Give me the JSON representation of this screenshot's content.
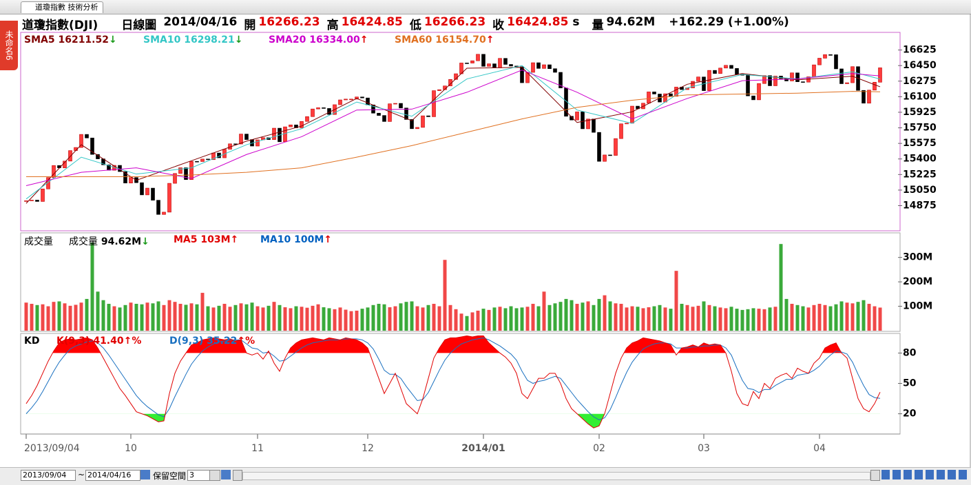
{
  "ui": {
    "tab": "道瓊指數 技術分析",
    "side_tab": "未命名6",
    "bottom": {
      "start": "2013/09/04",
      "sep": "~",
      "end": "2014/04/16",
      "reserve": "保留空間",
      "reserve_value": "3"
    }
  },
  "header": {
    "name": "道瓊指數(DJI)",
    "period": "日線圖",
    "date": "2014/04/16",
    "open_label": "開",
    "open": "16266.23",
    "high_label": "高",
    "high": "16424.85",
    "low_label": "低",
    "low": "16266.23",
    "close_label": "收",
    "close": "16424.85",
    "close_flag": "s",
    "volume_label": "量",
    "volume": "94.62M",
    "change": "+162.29 (+1.00%)"
  },
  "chart_data": [
    {
      "type": "candlestick",
      "up_color": "#ff3c3c",
      "down_color": "#000000",
      "categories": [
        "2013/09/04",
        null,
        null,
        null,
        null,
        null,
        null,
        null,
        null,
        null,
        null,
        null,
        null,
        null,
        null,
        null,
        null,
        null,
        null,
        "10",
        null,
        null,
        null,
        null,
        null,
        null,
        null,
        null,
        null,
        null,
        null,
        null,
        null,
        null,
        null,
        null,
        null,
        null,
        null,
        null,
        null,
        null,
        "11",
        null,
        null,
        null,
        null,
        null,
        null,
        null,
        null,
        null,
        null,
        null,
        null,
        null,
        null,
        null,
        null,
        null,
        null,
        null,
        "12",
        null,
        null,
        null,
        null,
        null,
        null,
        null,
        null,
        null,
        null,
        null,
        null,
        null,
        null,
        null,
        null,
        null,
        null,
        null,
        null,
        "2014/01",
        null,
        null,
        null,
        null,
        null,
        null,
        null,
        null,
        null,
        null,
        null,
        null,
        null,
        null,
        null,
        null,
        null,
        null,
        null,
        null,
        "02",
        null,
        null,
        null,
        null,
        null,
        null,
        null,
        null,
        null,
        null,
        null,
        null,
        null,
        null,
        null,
        null,
        null,
        null,
        "03",
        null,
        null,
        null,
        null,
        null,
        null,
        null,
        null,
        null,
        null,
        null,
        null,
        null,
        null,
        null,
        null,
        null,
        null,
        null,
        null,
        "04",
        null,
        null,
        null,
        null,
        null,
        null,
        null,
        null,
        null,
        null,
        null
      ],
      "values": [
        14930,
        14937,
        14922,
        15063,
        15191,
        15326,
        15300,
        15376,
        15494,
        15529,
        15676,
        15636,
        15451,
        15401,
        15334,
        15273,
        15328,
        15258,
        15129,
        15191,
        15133,
        14996,
        15072,
        14936,
        14776,
        14802,
        15126,
        15237,
        15301,
        15168,
        15373,
        15371,
        15399,
        15392,
        15467,
        15413,
        15509,
        15570,
        15568,
        15680,
        15618,
        15545,
        15615,
        15639,
        15618,
        15746,
        15593,
        15761,
        15783,
        15750,
        15822,
        15876,
        15962,
        15976,
        15968,
        15900,
        16010,
        16064,
        16073,
        16073,
        16097,
        16086,
        16008,
        15915,
        15889,
        15821,
        16020,
        16025,
        15973,
        15844,
        15740,
        15755,
        15885,
        15875,
        16168,
        16179,
        16221,
        16294,
        16358,
        16479,
        16478,
        16504,
        16577,
        16441,
        16470,
        16425,
        16531,
        16463,
        16445,
        16437,
        16257,
        16374,
        16482,
        16418,
        16459,
        16415,
        16374,
        16198,
        15880,
        15838,
        15929,
        15739,
        15849,
        15699,
        15373,
        15445,
        15440,
        15629,
        15795,
        15802,
        15994,
        15964,
        16027,
        16154,
        16130,
        16040,
        16133,
        16104,
        16208,
        16180,
        16199,
        16273,
        16322,
        16168,
        16396,
        16361,
        16422,
        16453,
        16418,
        16351,
        16341,
        16109,
        16065,
        16248,
        16337,
        16223,
        16332,
        16303,
        16277,
        16368,
        16268,
        16264,
        16324,
        16458,
        16533,
        16573,
        16572,
        16413,
        16246,
        16257,
        16438,
        16171,
        16027,
        16174,
        16263,
        16424.85
      ],
      "series": [
        {
          "name": "SMA5",
          "color": "#800000",
          "legend_value": "16211.52",
          "trend": "↓",
          "x": [
            0,
            10,
            20,
            30,
            40,
            50,
            60,
            70,
            80,
            90,
            100,
            110,
            120,
            130,
            140,
            150,
            155
          ],
          "values": [
            14900,
            15560,
            15160,
            15380,
            15600,
            15770,
            16080,
            15830,
            16420,
            16430,
            15810,
            15930,
            16240,
            16360,
            16290,
            16330,
            16211.52
          ]
        },
        {
          "name": "SMA10",
          "color": "#33c6c6",
          "legend_value": "16298.21",
          "trend": "↓",
          "x": [
            0,
            10,
            20,
            30,
            40,
            50,
            60,
            70,
            80,
            90,
            100,
            110,
            120,
            130,
            140,
            150,
            155
          ],
          "values": [
            14950,
            15420,
            15230,
            15300,
            15560,
            15740,
            16040,
            15880,
            16300,
            16450,
            15950,
            15800,
            16200,
            16350,
            16300,
            16380,
            16298.21
          ]
        },
        {
          "name": "SMA20",
          "color": "#cc00cc",
          "legend_value": "16334.00",
          "trend": "↑",
          "x": [
            0,
            10,
            20,
            30,
            40,
            50,
            60,
            70,
            80,
            90,
            100,
            110,
            120,
            130,
            140,
            150,
            155
          ],
          "values": [
            15100,
            15250,
            15300,
            15180,
            15450,
            15650,
            15950,
            15960,
            16150,
            16400,
            16150,
            15850,
            16080,
            16280,
            16300,
            16360,
            16334
          ]
        },
        {
          "name": "SMA60",
          "color": "#e07020",
          "legend_value": "16154.70",
          "trend": "↑",
          "x": [
            0,
            10,
            20,
            30,
            40,
            50,
            60,
            70,
            80,
            90,
            100,
            110,
            120,
            130,
            140,
            150,
            155
          ],
          "values": [
            15200,
            15200,
            15200,
            15220,
            15250,
            15300,
            15420,
            15550,
            15700,
            15850,
            15980,
            16060,
            16120,
            16130,
            16140,
            16160,
            16154.7
          ]
        }
      ],
      "ylim": [
        14600,
        16800
      ],
      "yticks": [
        14875,
        15050,
        15225,
        15400,
        15575,
        15750,
        15925,
        16100,
        16275,
        16450,
        16625
      ]
    },
    {
      "type": "bar",
      "title": "成交量",
      "up_color": "#f04848",
      "down_color": "#3aaa3a",
      "legend": [
        {
          "label": "成交量",
          "value": "94.62M",
          "trend": "↓",
          "color": "#000000"
        },
        {
          "label": "MA5",
          "value": "103M",
          "trend": "↑",
          "color": "#e00000"
        },
        {
          "label": "MA10",
          "value": "100M",
          "trend": "↑",
          "color": "#0060c0"
        }
      ],
      "values": [
        115,
        110,
        105,
        108,
        100,
        118,
        120,
        112,
        102,
        106,
        115,
        130,
        360,
        160,
        125,
        110,
        100,
        95,
        105,
        115,
        110,
        108,
        115,
        112,
        120,
        105,
        125,
        118,
        110,
        106,
        112,
        108,
        155,
        100,
        95,
        102,
        110,
        98,
        105,
        112,
        108,
        115,
        100,
        95,
        102,
        118,
        105,
        96,
        92,
        100,
        98,
        94,
        102,
        108,
        96,
        92,
        88,
        95,
        86,
        80,
        82,
        90,
        95,
        105,
        110,
        108,
        96,
        100,
        112,
        118,
        120,
        100,
        95,
        105,
        110,
        100,
        290,
        105,
        88,
        70,
        60,
        75,
        82,
        90,
        85,
        95,
        98,
        92,
        100,
        92,
        95,
        98,
        110,
        100,
        160,
        105,
        112,
        118,
        130,
        125,
        110,
        115,
        120,
        105,
        130,
        145,
        120,
        112,
        110,
        95,
        100,
        98,
        92,
        96,
        100,
        105,
        95,
        90,
        245,
        110,
        105,
        98,
        102,
        120,
        105,
        100,
        95,
        92,
        98,
        90,
        85,
        88,
        92,
        90,
        88,
        95,
        98,
        355,
        130,
        110,
        105,
        100,
        95,
        105,
        110,
        105,
        100,
        108,
        120,
        115,
        112,
        118,
        125,
        110,
        100,
        94.62
      ],
      "ylim": [
        0,
        395
      ],
      "yticks": [
        {
          "value": 100,
          "label": "100M"
        },
        {
          "value": 200,
          "label": "200M"
        },
        {
          "value": 300,
          "label": "300M"
        }
      ]
    },
    {
      "type": "line",
      "title": "KD",
      "high_zone": 80,
      "low_zone": 20,
      "high_color": "#ff0000",
      "low_color": "#33ee33",
      "series": [
        {
          "name": "K(9,3)",
          "color": "#e00000",
          "legend_value": "41.40",
          "trend": "↑%",
          "values": [
            30,
            38,
            48,
            60,
            72,
            82,
            90,
            93,
            94,
            93,
            94,
            95,
            93,
            85,
            75,
            65,
            55,
            45,
            38,
            30,
            22,
            20,
            18,
            15,
            12,
            13,
            40,
            60,
            72,
            80,
            88,
            90,
            93,
            94,
            95,
            94,
            93,
            94,
            92,
            93,
            80,
            78,
            80,
            74,
            82,
            70,
            62,
            75,
            85,
            90,
            93,
            94,
            95,
            94,
            93,
            95,
            94,
            93,
            95,
            94,
            93,
            90,
            85,
            70,
            55,
            40,
            50,
            60,
            45,
            30,
            25,
            20,
            35,
            55,
            75,
            85,
            93,
            95,
            95,
            96,
            97,
            96,
            97,
            97,
            90,
            85,
            80,
            76,
            70,
            60,
            40,
            35,
            45,
            55,
            55,
            60,
            60,
            50,
            35,
            25,
            20,
            15,
            10,
            6,
            8,
            20,
            40,
            60,
            75,
            85,
            90,
            92,
            95,
            94,
            93,
            92,
            90,
            88,
            78,
            85,
            86,
            88,
            86,
            90,
            88,
            89,
            88,
            80,
            62,
            40,
            30,
            28,
            42,
            35,
            50,
            45,
            55,
            58,
            60,
            55,
            65,
            62,
            60,
            70,
            75,
            85,
            88,
            90,
            80,
            75,
            55,
            35,
            25,
            22,
            30,
            41.4
          ]
        },
        {
          "name": "D(9,3)",
          "color": "#1a70c0",
          "legend_value": "35.22",
          "trend": "↑%",
          "values": [
            20,
            26,
            33,
            42,
            52,
            62,
            71,
            78,
            84,
            87,
            89,
            91,
            92,
            90,
            85,
            78,
            70,
            62,
            54,
            46,
            38,
            32,
            27,
            23,
            19,
            17,
            25,
            37,
            48,
            59,
            69,
            76,
            82,
            86,
            89,
            91,
            92,
            93,
            93,
            93,
            89,
            85,
            84,
            80,
            81,
            77,
            72,
            73,
            77,
            81,
            85,
            88,
            90,
            91,
            92,
            93,
            93,
            93,
            94,
            94,
            94,
            93,
            90,
            84,
            74,
            63,
            59,
            59,
            55,
            47,
            40,
            33,
            34,
            41,
            52,
            63,
            73,
            80,
            85,
            89,
            91,
            93,
            94,
            95,
            93,
            90,
            87,
            83,
            79,
            73,
            62,
            53,
            50,
            52,
            53,
            55,
            57,
            55,
            48,
            41,
            34,
            28,
            22,
            17,
            14,
            16,
            24,
            36,
            49,
            61,
            71,
            78,
            84,
            87,
            89,
            90,
            90,
            89,
            85,
            85,
            85,
            86,
            86,
            87,
            87,
            88,
            88,
            85,
            78,
            65,
            53,
            45,
            44,
            41,
            44,
            44,
            48,
            51,
            54,
            54,
            58,
            59,
            60,
            63,
            67,
            73,
            78,
            82,
            81,
            79,
            71,
            59,
            48,
            39,
            36,
            35.22
          ]
        }
      ],
      "ylim": [
        0,
        98
      ],
      "yticks": [
        20,
        50,
        80
      ]
    }
  ]
}
